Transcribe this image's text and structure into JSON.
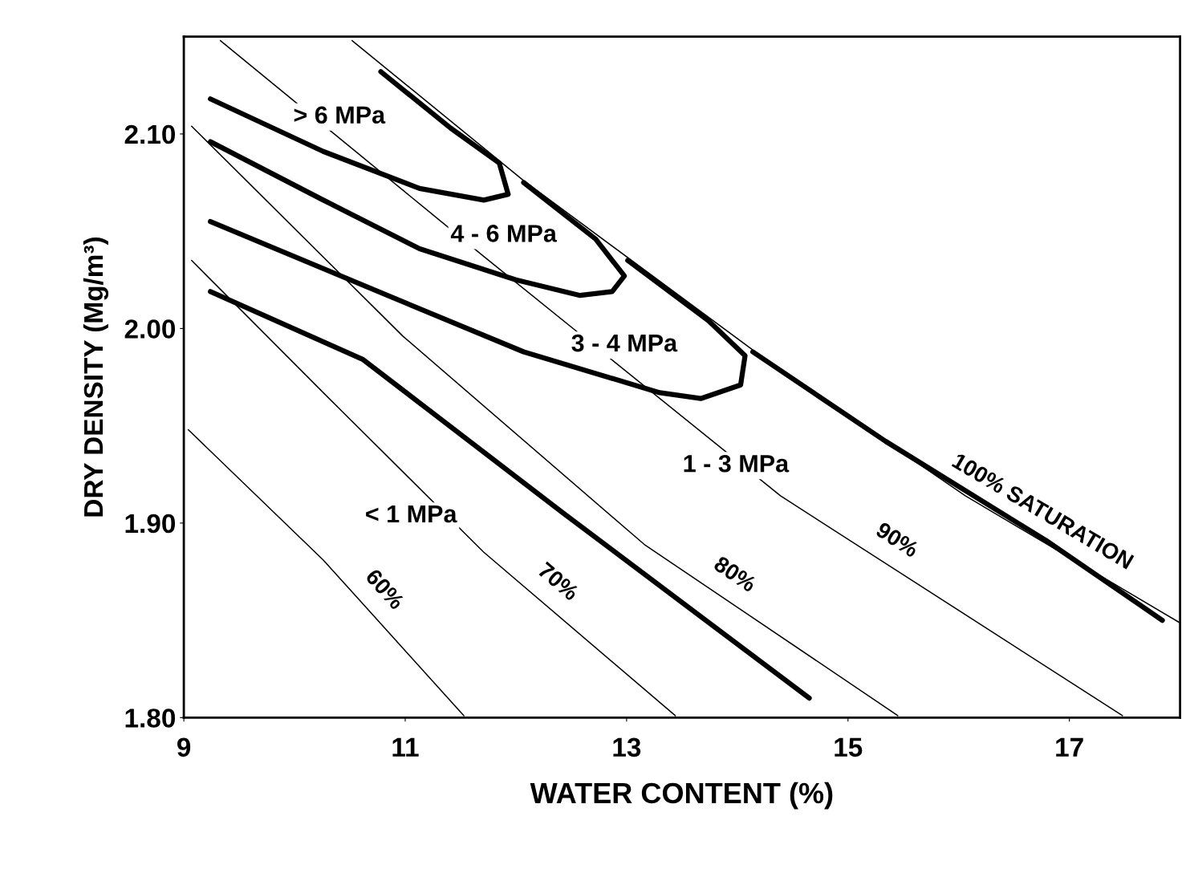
{
  "chart_data": {
    "type": "line",
    "xlabel": "WATER CONTENT (%)",
    "ylabel": "DRY DENSITY (Mg/m³)",
    "xlim": [
      9,
      18
    ],
    "ylim": [
      1.8,
      2.15
    ],
    "xticks": [
      9,
      11,
      13,
      15,
      17
    ],
    "yticks": [
      {
        "value": 1.8,
        "label": "1.80"
      },
      {
        "value": 1.9,
        "label": "1.90"
      },
      {
        "value": 2.0,
        "label": "2.00"
      },
      {
        "value": 2.1,
        "label": "2.10"
      }
    ],
    "grid": false,
    "legend": false,
    "marker": "none",
    "line_style": "solid",
    "series": [
      {
        "name": "60%",
        "color": "#000000",
        "x": [
          9.04,
          10.26,
          11.53
        ],
        "values": [
          1.948,
          1.881,
          1.801
        ]
      },
      {
        "name": "70%",
        "color": "#000000",
        "x": [
          9.07,
          10.26,
          11.71,
          13.44
        ],
        "values": [
          2.035,
          1.967,
          1.885,
          1.801
        ]
      },
      {
        "name": "80%",
        "color": "#000000",
        "x": [
          9.07,
          10.98,
          13.16,
          15.45
        ],
        "values": [
          2.104,
          1.996,
          1.889,
          1.801
        ]
      },
      {
        "name": "90%",
        "color": "#000000",
        "x": [
          9.33,
          11.71,
          14.39,
          17.48
        ],
        "values": [
          2.148,
          2.037,
          1.914,
          1.801
        ]
      },
      {
        "name": "100% SATURATION",
        "color": "#000000",
        "x": [
          10.52,
          12.07,
          14.14,
          16.06,
          17.99
        ],
        "values": [
          2.148,
          2.076,
          1.989,
          1.914,
          1.849
        ]
      },
      {
        "color": "#000000",
        "x": [
          9.24,
          10.62,
          12.43,
          14.65
        ],
        "values": [
          2.019,
          1.984,
          1.905,
          1.81
        ]
      },
      {
        "color": "#000000",
        "x": [
          9.24,
          10.84,
          12.07,
          13.3,
          13.67,
          14.03,
          14.07,
          13.74,
          13.01
        ],
        "values": [
          2.055,
          2.017,
          1.988,
          1.967,
          1.964,
          1.971,
          1.986,
          2.004,
          2.035
        ]
      },
      {
        "color": "#000000",
        "x": [
          9.24,
          10.26,
          11.13,
          12.0,
          12.58,
          12.87,
          12.98,
          12.72,
          12.07
        ],
        "values": [
          2.096,
          2.066,
          2.041,
          2.025,
          2.017,
          2.019,
          2.027,
          2.046,
          2.075
        ]
      },
      {
        "color": "#000000",
        "x": [
          9.24,
          10.26,
          11.13,
          11.71,
          11.93,
          11.85,
          11.41,
          10.78
        ],
        "values": [
          2.118,
          2.091,
          2.072,
          2.066,
          2.069,
          2.085,
          2.103,
          2.132
        ]
      },
      {
        "color": "#000000",
        "x": [
          14.14,
          15.34,
          16.79,
          17.84
        ],
        "values": [
          1.988,
          1.942,
          1.891,
          1.85
        ]
      }
    ],
    "annotations": [
      "> 6 MPa",
      "4 - 6 MPa",
      "3 - 4 MPa",
      "1 - 3 MPa",
      "< 1 MPa"
    ]
  }
}
